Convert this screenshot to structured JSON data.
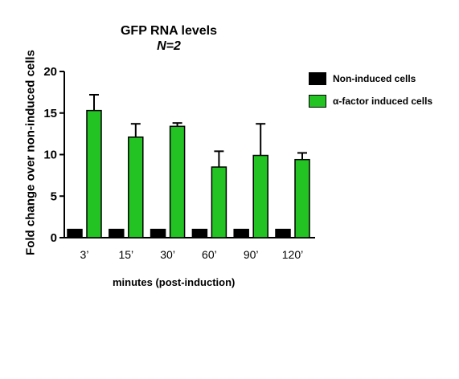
{
  "chart_data": {
    "type": "bar",
    "title": "GFP RNA levels",
    "subtitle": "N=2",
    "xlabel": "minutes (post-induction)",
    "ylabel": "Fold change over non-induced cells",
    "categories": [
      "3’",
      "15’",
      "30’",
      "60’",
      "90’",
      "120’"
    ],
    "ylim": [
      0,
      20
    ],
    "yticks": [
      0,
      5,
      10,
      15,
      20
    ],
    "grid": false,
    "legend_position": "top-right",
    "series": [
      {
        "name": "Non-induced cells",
        "color": "#000000",
        "values": [
          1,
          1,
          1,
          1,
          1,
          1
        ],
        "errors": [
          0,
          0,
          0,
          0,
          0,
          0
        ]
      },
      {
        "name": "α-factor induced cells",
        "color": "#22c322",
        "values": [
          15.3,
          12.1,
          13.4,
          8.5,
          9.9,
          9.4
        ],
        "errors": [
          1.9,
          1.6,
          0.4,
          1.9,
          3.8,
          0.8
        ]
      }
    ]
  }
}
